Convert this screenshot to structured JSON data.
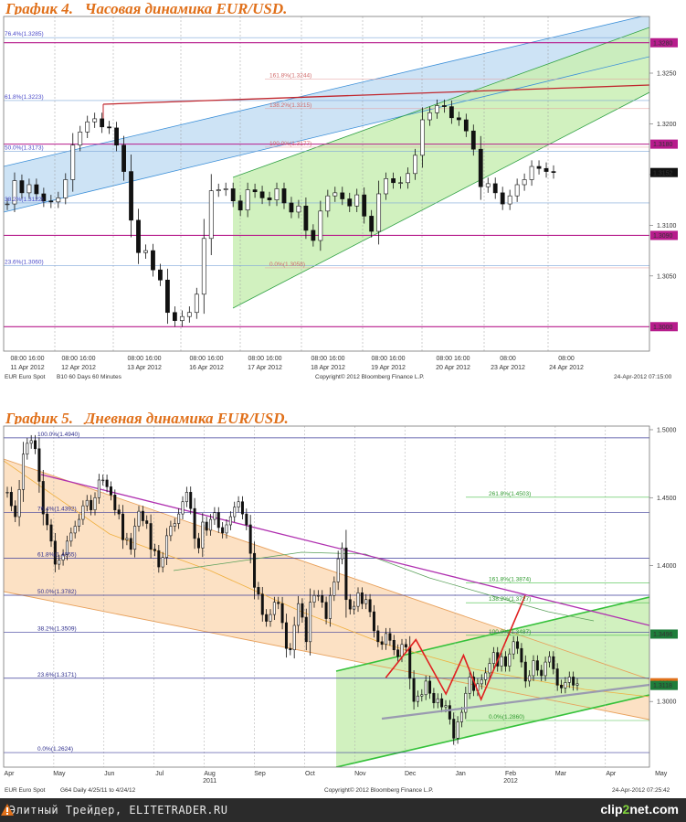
{
  "chart_data": [
    {
      "type": "candlestick",
      "title": "График 4.   Часовая динамика EUR/USD.",
      "instrument": "EUR  Euro Spot",
      "footer_settings": "B10   60 Days   60 Minutes",
      "copyright": "Copyright© 2012 Bloomberg Finance L.P.",
      "timestamp": "24-Apr-2012 07:15:00",
      "ylim": [
        1.2975,
        1.3305
      ],
      "y_ticks": [
        "1.3250",
        "1.3200",
        "1.3150",
        "1.3100",
        "1.3050"
      ],
      "x_tick_time": [
        "08:00 16:00",
        "08:00 16:00",
        "08:00 16:00",
        "08:00 16:00",
        "08:00 16:00",
        "08:00 16:00",
        "08:00 16:00",
        "08:00 16:00",
        "08:00",
        "08:00"
      ],
      "x_tick_date": [
        "11 Apr 2012",
        "12 Apr 2012",
        "13 Apr 2012",
        "16 Apr 2012",
        "17 Apr 2012",
        "18 Apr 2012",
        "19 Apr 2012",
        "20 Apr 2012",
        "23 Apr 2012",
        "24 Apr 2012"
      ],
      "price_tags": [
        {
          "label": "1.3280",
          "value": 1.328,
          "color": "#b71c8c"
        },
        {
          "label": "1.3180",
          "value": 1.318,
          "color": "#b71c8c"
        },
        {
          "label": "1.3152",
          "value": 1.3152,
          "color": "#111111"
        },
        {
          "label": "1.3090",
          "value": 1.309,
          "color": "#b71c8c"
        },
        {
          "label": "1.3000",
          "value": 1.3,
          "color": "#b71c8c"
        }
      ],
      "fib_levels": [
        {
          "label": "76.4%(1.3285)",
          "value": 1.3285
        },
        {
          "label": "61.8%(1.3223)",
          "value": 1.3223
        },
        {
          "label": "50.0%(1.3173)",
          "value": 1.3173
        },
        {
          "label": "38.2%(1.3122)",
          "value": 1.3122
        },
        {
          "label": "23.6%(1.3060)",
          "value": 1.306
        }
      ],
      "fib_ext_levels": [
        {
          "label": "161.8%(1.3244)",
          "value": 1.3244
        },
        {
          "label": "138.2%(1.3215)",
          "value": 1.3215
        },
        {
          "label": "100.0%(1.3177)",
          "value": 1.3177
        },
        {
          "label": "0.0%(1.3058)",
          "value": 1.3058
        }
      ],
      "horizontal_lines": [
        1.328,
        1.318,
        1.309,
        1.3
      ],
      "close": [
        1.3121,
        1.3144,
        1.3132,
        1.314,
        1.3131,
        1.3124,
        1.3123,
        1.3127,
        1.3145,
        1.3179,
        1.3192,
        1.3202,
        1.3205,
        1.3197,
        1.3196,
        1.3179,
        1.3153,
        1.3105,
        1.3073,
        1.3075,
        1.3056,
        1.3046,
        1.3014,
        1.3006,
        1.301,
        1.3014,
        1.3032,
        1.3087,
        1.3134,
        1.3135,
        1.3136,
        1.3124,
        1.3115,
        1.3135,
        1.3133,
        1.3127,
        1.3125,
        1.3136,
        1.3122,
        1.3113,
        1.3119,
        1.3095,
        1.3085,
        1.3114,
        1.3129,
        1.3132,
        1.3126,
        1.3119,
        1.313,
        1.3109,
        1.3094,
        1.3131,
        1.3146,
        1.3142,
        1.3142,
        1.3151,
        1.3169,
        1.3204,
        1.3211,
        1.3218,
        1.3217,
        1.3206,
        1.3204,
        1.3193,
        1.3175,
        1.3138,
        1.3141,
        1.3132,
        1.3121,
        1.3129,
        1.314,
        1.3145,
        1.3158,
        1.3156,
        1.3153,
        1.3152
      ]
    },
    {
      "type": "candlestick",
      "title": "График 5.   Дневная динамика EUR/USD.",
      "instrument": "EUR  Euro Spot",
      "footer_settings": "G64   Daily   4/25/11 to 4/24/12",
      "copyright": "Copyright© 2012 Bloomberg Finance L.P.",
      "timestamp": "24-Apr-2012 07:25:42",
      "ylim": [
        1.251,
        1.502
      ],
      "y_ticks": [
        "1.5000",
        "1.4500",
        "1.4000",
        "1.3000"
      ],
      "x_ticks": [
        "Apr",
        "May",
        "Jun",
        "Jul",
        "Aug",
        "Sep",
        "Oct",
        "Nov",
        "Dec",
        "Jan",
        "Feb",
        "Mar",
        "Apr",
        "May"
      ],
      "year_labels": [
        "2011",
        "2012"
      ],
      "price_tags": [
        {
          "label": "1.3496",
          "value": 1.3496,
          "color": "#1e7d3a"
        },
        {
          "label": "1.3138",
          "value": 1.3138,
          "color": "#e0701a"
        },
        {
          "label": "1.3118",
          "value": 1.3118,
          "color": "#1e7d3a"
        }
      ],
      "fib_levels": [
        {
          "label": "100.0%(1.4940)",
          "value": 1.494
        },
        {
          "label": "76.4%(1.4392)",
          "value": 1.4392
        },
        {
          "label": "61.8%(1.4055)",
          "value": 1.4055
        },
        {
          "label": "50.0%(1.3782)",
          "value": 1.3782
        },
        {
          "label": "38.2%(1.3509)",
          "value": 1.3509
        },
        {
          "label": "23.6%(1.3171)",
          "value": 1.3171
        },
        {
          "label": "0.0%(1.2624)",
          "value": 1.2624
        }
      ],
      "fib_ext_levels": [
        {
          "label": "261.8%(1.4503)",
          "value": 1.4503
        },
        {
          "label": "161.8%(1.3874)",
          "value": 1.3874
        },
        {
          "label": "138.2%(1.3727)",
          "value": 1.3727
        },
        {
          "label": "100.0%(1.3487)",
          "value": 1.3487
        },
        {
          "label": "0.0%(1.2860)",
          "value": 1.286
        }
      ],
      "forecast_path": [
        {
          "month": 7.62,
          "value": 1.3175
        },
        {
          "month": 8.22,
          "value": 1.3455
        },
        {
          "month": 8.82,
          "value": 1.3055
        },
        {
          "month": 9.17,
          "value": 1.334
        },
        {
          "month": 9.52,
          "value": 1.3015
        },
        {
          "month": 10.4,
          "value": 1.378
        }
      ],
      "close": [
        1.454,
        1.444,
        1.436,
        1.456,
        1.482,
        1.49,
        1.492,
        1.486,
        1.462,
        1.438,
        1.43,
        1.418,
        1.401,
        1.404,
        1.408,
        1.418,
        1.424,
        1.429,
        1.434,
        1.444,
        1.448,
        1.441,
        1.45,
        1.463,
        1.463,
        1.458,
        1.452,
        1.441,
        1.438,
        1.419,
        1.42,
        1.412,
        1.429,
        1.44,
        1.433,
        1.431,
        1.412,
        1.411,
        1.399,
        1.406,
        1.422,
        1.429,
        1.431,
        1.438,
        1.447,
        1.454,
        1.442,
        1.42,
        1.413,
        1.432,
        1.426,
        1.434,
        1.439,
        1.428,
        1.424,
        1.43,
        1.436,
        1.443,
        1.447,
        1.438,
        1.43,
        1.409,
        1.384,
        1.379,
        1.364,
        1.359,
        1.364,
        1.373,
        1.372,
        1.358,
        1.339,
        1.338,
        1.356,
        1.372,
        1.362,
        1.344,
        1.373,
        1.378,
        1.378,
        1.373,
        1.361,
        1.378,
        1.388,
        1.405,
        1.413,
        1.375,
        1.368,
        1.37,
        1.38,
        1.372,
        1.375,
        1.366,
        1.352,
        1.344,
        1.342,
        1.35,
        1.345,
        1.338,
        1.333,
        1.342,
        1.34,
        1.317,
        1.3,
        1.304,
        1.305,
        1.315,
        1.306,
        1.299,
        1.302,
        1.296,
        1.297,
        1.287,
        1.273,
        1.285,
        1.292,
        1.306,
        1.318,
        1.308,
        1.313,
        1.316,
        1.321,
        1.328,
        1.336,
        1.326,
        1.333,
        1.326,
        1.335,
        1.344,
        1.339,
        1.329,
        1.315,
        1.319,
        1.33,
        1.323,
        1.319,
        1.329,
        1.333,
        1.324,
        1.312,
        1.31,
        1.314,
        1.318,
        1.312,
        1.313
      ]
    }
  ],
  "footer": {
    "left_text": "Элитный Трейдер, ELITETRADER.RU",
    "logo_main": "clip",
    "logo_num": "2",
    "logo_tail": "net.com"
  },
  "colors": {
    "title": "#e0701a",
    "channel_blue": "#bcd9f2",
    "channel_green": "#c9efb4",
    "channel_orange": "#fbd9b5",
    "candle_up": "#ffffff",
    "candle_down": "#111111",
    "fib": "#5b5bd6",
    "resistance": "#c0262d",
    "horizontal": "#b71c8c"
  }
}
